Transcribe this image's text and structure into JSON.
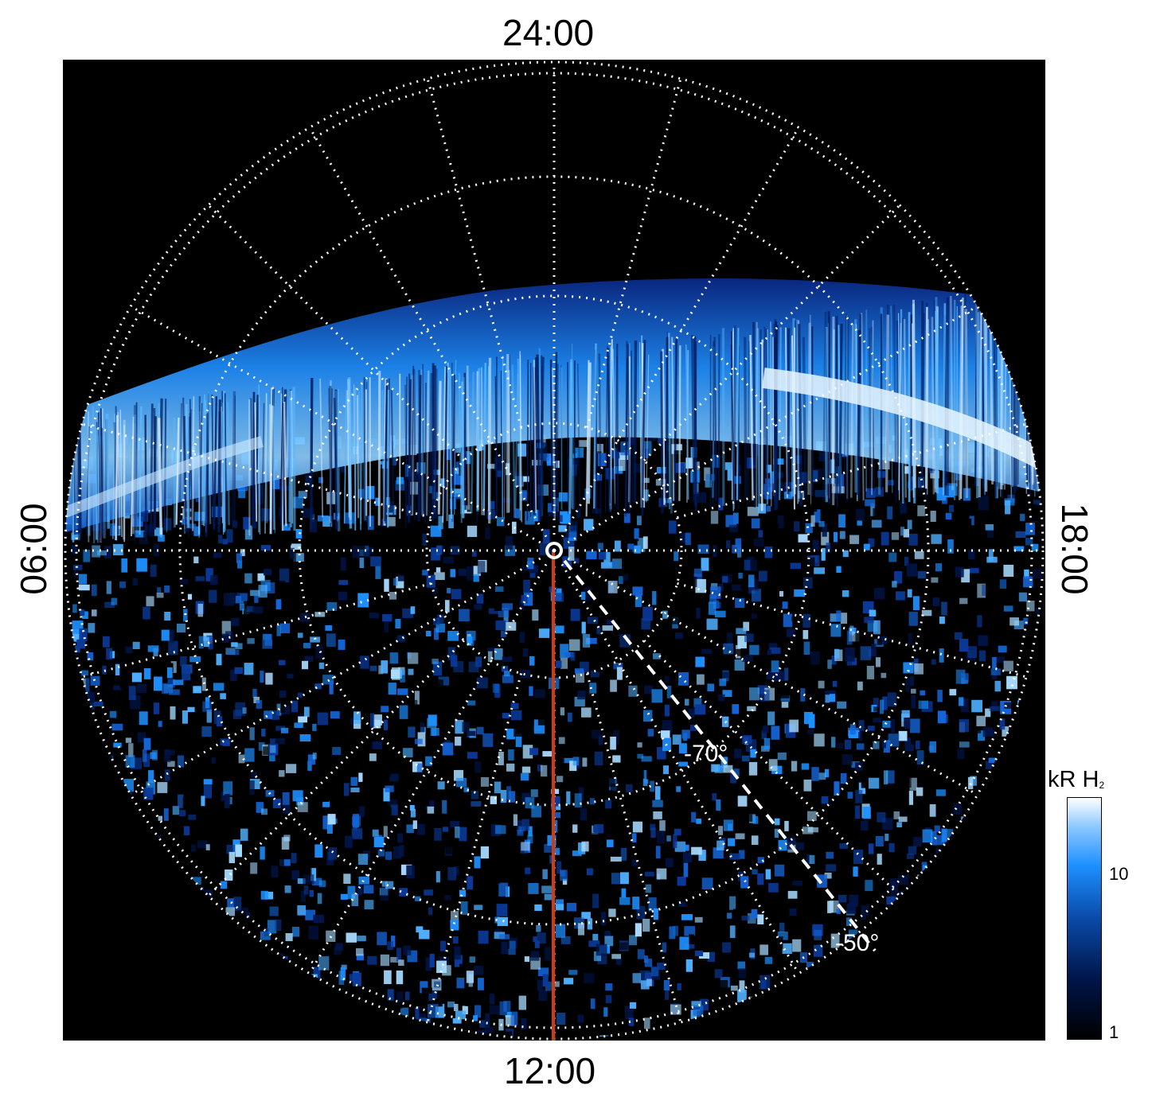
{
  "local_time_labels": {
    "top": "24:00",
    "bottom": "12:00",
    "left": "06:00",
    "right": "18:00"
  },
  "latitude_labels": [
    "-70°",
    "-50°"
  ],
  "colorbar": {
    "title_main": "kR H",
    "title_sub": "2",
    "ticks": [
      "10",
      "1"
    ]
  },
  "colors": {
    "background": "#000000",
    "grid": "#ffffff",
    "meridian_line": "#d23a14",
    "emission_low": "#00154a",
    "emission_mid": "#1e90ff",
    "emission_high": "#ffffff"
  }
}
